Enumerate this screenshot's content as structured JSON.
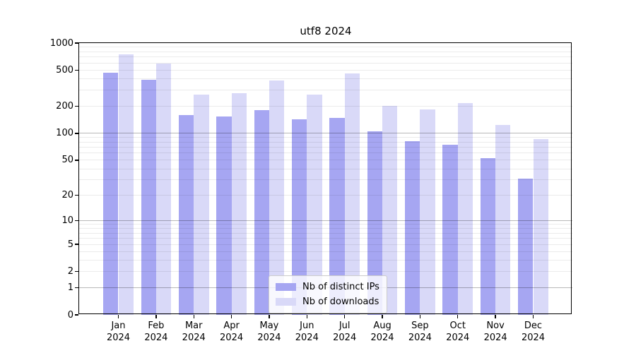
{
  "chart_data": {
    "type": "bar",
    "title": "utf8 2024",
    "xlabel": "",
    "ylabel": "",
    "yscale": "log1p",
    "ylim": [
      0,
      1000
    ],
    "yticks": [
      0,
      1,
      2,
      5,
      10,
      20,
      50,
      100,
      200,
      500,
      1000
    ],
    "grid": true,
    "legend_position": "lower center",
    "categories": [
      "Jan 2024",
      "Feb 2024",
      "Mar 2024",
      "Apr 2024",
      "May 2024",
      "Jun 2024",
      "Jul 2024",
      "Aug 2024",
      "Sep 2024",
      "Oct 2024",
      "Nov 2024",
      "Dec 2024"
    ],
    "series": [
      {
        "name": "Nb of distinct IPs",
        "color": "#a6a6f2",
        "values": [
          470,
          390,
          160,
          155,
          180,
          143,
          148,
          105,
          81,
          75,
          53,
          31
        ]
      },
      {
        "name": "Nb of downloads",
        "color": "#d9d9f8",
        "values": [
          755,
          595,
          270,
          280,
          385,
          270,
          465,
          202,
          185,
          218,
          123,
          87
        ]
      }
    ],
    "colors": {
      "grid_minor": "rgba(0,0,0,0.08)",
      "grid_major": "rgba(0,0,0,0.28)",
      "axis": "#000000",
      "background": "#ffffff"
    }
  }
}
